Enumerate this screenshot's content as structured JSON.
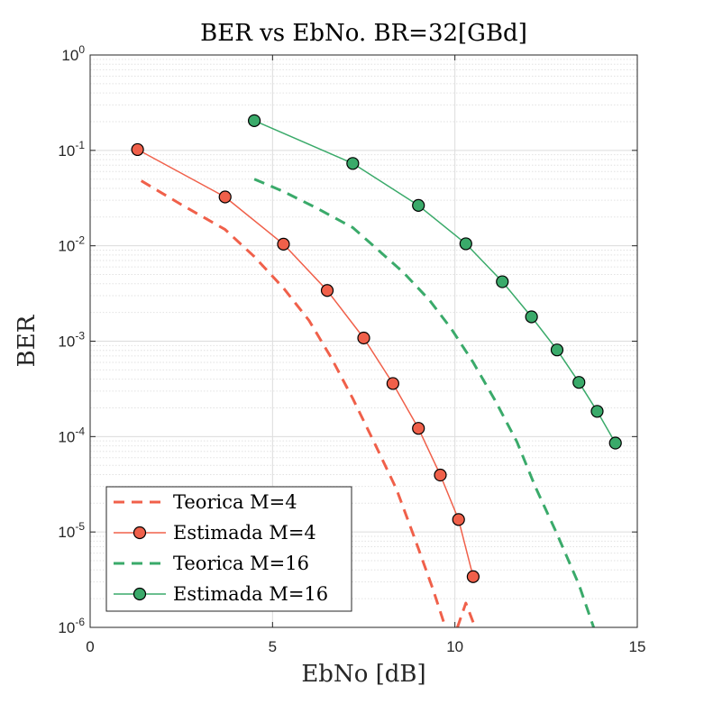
{
  "chart_data": {
    "type": "line",
    "title": "BER vs EbNo. BR=32[GBd]",
    "xlabel": "EbNo [dB]",
    "ylabel": "BER",
    "xlim": [
      0,
      15
    ],
    "ylim": [
      1e-06,
      1
    ],
    "yscale": "log",
    "grid": true,
    "minor_grid": true,
    "legend_position": "bottom-left",
    "x_ticks": [
      "0",
      "5",
      "10",
      "15"
    ],
    "y_ticks": [
      {
        "base": "10",
        "exp": "0"
      },
      {
        "base": "10",
        "exp": "-1"
      },
      {
        "base": "10",
        "exp": "-2"
      },
      {
        "base": "10",
        "exp": "-3"
      },
      {
        "base": "10",
        "exp": "-4"
      },
      {
        "base": "10",
        "exp": "-5"
      },
      {
        "base": "10",
        "exp": "-6"
      }
    ],
    "series": [
      {
        "name": "Teorica M=4",
        "color": "#f0604a",
        "style": "dashed",
        "marker": "none",
        "x": [
          1.4,
          2.5,
          3.7,
          4.5,
          5.3,
          6.0,
          6.6,
          7.2,
          7.8,
          8.4,
          8.9,
          9.4,
          9.9,
          10.3,
          10.6
        ],
        "y": [
          0.048,
          0.027,
          0.0148,
          0.0077,
          0.0036,
          0.00165,
          0.00068,
          0.00025,
          8.5e-05,
          2.8e-05,
          8.5e-06,
          2.5e-06,
          6.5e-07,
          1.8e-06,
          9e-07
        ]
      },
      {
        "name": "Estimada M=4",
        "color": "#f0604a",
        "style": "solid",
        "marker": "circle",
        "x": [
          1.3,
          3.7,
          5.3,
          6.5,
          7.5,
          8.3,
          9.0,
          9.6,
          10.1,
          10.5
        ],
        "y": [
          0.102,
          0.0325,
          0.0104,
          0.0034,
          0.00108,
          0.00036,
          0.000122,
          3.95e-05,
          1.35e-05,
          3.4e-06
        ]
      },
      {
        "name": "Teorica M=16",
        "color": "#3aaa6a",
        "style": "dashed",
        "marker": "none",
        "x": [
          4.5,
          5.3,
          6.2,
          7.2,
          7.9,
          8.6,
          9.3,
          9.9,
          10.5,
          11.1,
          11.7,
          12.2,
          12.8,
          13.4,
          13.9,
          14.4
        ],
        "y": [
          0.05,
          0.037,
          0.025,
          0.0155,
          0.009,
          0.0052,
          0.0027,
          0.00135,
          0.0006,
          0.00024,
          8.8e-05,
          3e-05,
          9.5e-06,
          2.8e-06,
          7.8e-07,
          9e-07
        ]
      },
      {
        "name": "Estimada M=16",
        "color": "#3aaa6a",
        "style": "solid",
        "marker": "circle",
        "x": [
          4.5,
          7.2,
          9.0,
          10.3,
          11.3,
          12.1,
          12.8,
          13.4,
          13.9,
          14.4
        ],
        "y": [
          0.205,
          0.073,
          0.0265,
          0.0105,
          0.0042,
          0.0018,
          0.00081,
          0.00037,
          0.000184,
          8.55e-05
        ]
      }
    ]
  }
}
